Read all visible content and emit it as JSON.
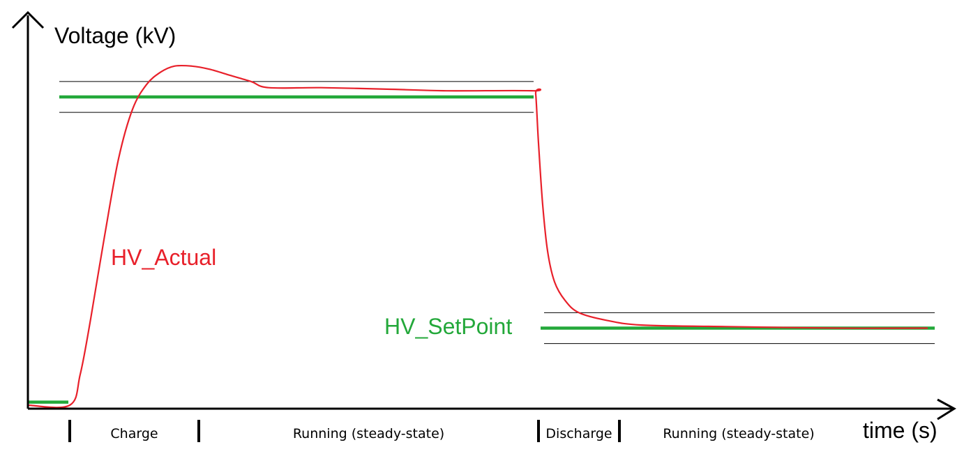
{
  "chart_data": {
    "type": "line",
    "title": "",
    "ylabel": "Voltage (kV)",
    "xlabel": "time (s)",
    "grid": false,
    "legend": "inline labels",
    "series": [
      {
        "name": "HV_Actual",
        "color": "#e8202a",
        "points": [
          [
            0,
            0
          ],
          [
            60,
            0
          ],
          [
            75,
            0.1
          ],
          [
            90,
            0.28
          ],
          [
            110,
            0.55
          ],
          [
            130,
            0.8
          ],
          [
            150,
            0.96
          ],
          [
            170,
            1.04
          ],
          [
            190,
            1.08
          ],
          [
            210,
            1.1
          ],
          [
            235,
            1.1
          ],
          [
            260,
            1.09
          ],
          [
            290,
            1.07
          ],
          [
            320,
            1.05
          ],
          [
            345,
            1.03
          ],
          [
            420,
            1.03
          ],
          [
            520,
            1.025
          ],
          [
            600,
            1.02
          ],
          [
            725,
            1.02
          ],
          [
            728,
            1.01
          ],
          [
            732,
            0.85
          ],
          [
            738,
            0.65
          ],
          [
            745,
            0.5
          ],
          [
            755,
            0.4
          ],
          [
            770,
            0.34
          ],
          [
            790,
            0.3
          ],
          [
            830,
            0.275
          ],
          [
            880,
            0.26
          ],
          [
            1000,
            0.255
          ],
          [
            1160,
            0.25
          ],
          [
            1290,
            0.25
          ]
        ]
      },
      {
        "name": "HV_SetPoint",
        "color": "#23a83a",
        "segments": [
          [
            [
              0,
              0.01
            ],
            [
              58,
              0.01
            ]
          ],
          [
            [
              45,
              1.0
            ],
            [
              725,
              1.0
            ]
          ],
          [
            [
              735,
              0.25
            ],
            [
              1300,
              0.25
            ]
          ]
        ]
      }
    ],
    "tolerance_bands": [
      {
        "x": [
          45,
          725
        ],
        "y": [
          0.95,
          1.05
        ]
      },
      {
        "x": [
          740,
          1300
        ],
        "y": [
          0.2,
          0.3
        ]
      }
    ],
    "phases": [
      {
        "label": "Charge",
        "x_start": 60,
        "x_end": 245
      },
      {
        "label": "Running (steady-state)",
        "x_start": 245,
        "x_end": 732
      },
      {
        "label": "Discharge",
        "x_start": 732,
        "x_end": 848
      },
      {
        "label": "Running (steady-state)",
        "x_start": 848,
        "x_end": 1190
      }
    ],
    "axis_color": "#000000"
  }
}
